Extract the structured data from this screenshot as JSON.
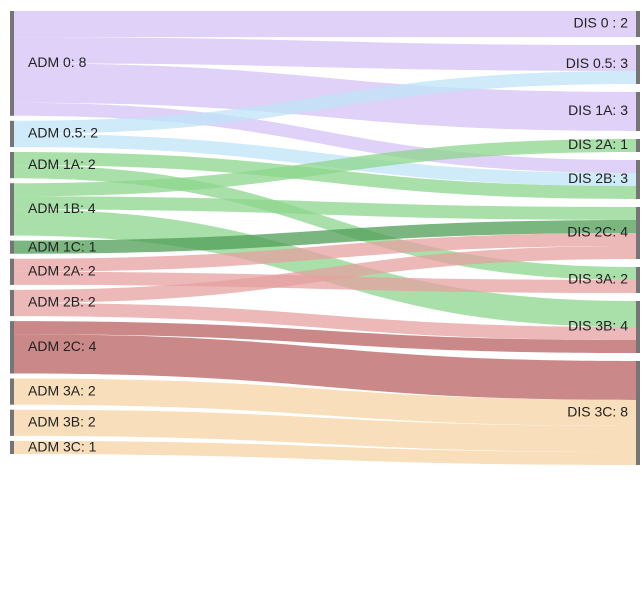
{
  "chart_data": {
    "type": "sankey",
    "title": "",
    "colors": {
      "0": "#d6c2f5",
      "0.5": "#bfe3f7",
      "1": "#8cd68c",
      "2": "#e6a0a0",
      "3": "#f5d3a3",
      "1-strong": "#4f9e57",
      "2-strong": "#b86060",
      "node": "#757575"
    },
    "source_nodes": [
      {
        "id": "ADM 0",
        "label": "ADM 0: 8",
        "value": 8,
        "group": "0"
      },
      {
        "id": "ADM 0.5",
        "label": "ADM 0.5: 2",
        "value": 2,
        "group": "0.5"
      },
      {
        "id": "ADM 1A",
        "label": "ADM 1A: 2",
        "value": 2,
        "group": "1"
      },
      {
        "id": "ADM 1B",
        "label": "ADM 1B: 4",
        "value": 4,
        "group": "1"
      },
      {
        "id": "ADM 1C",
        "label": "ADM 1C: 1",
        "value": 1,
        "group": "1"
      },
      {
        "id": "ADM 2A",
        "label": "ADM 2A: 2",
        "value": 2,
        "group": "2"
      },
      {
        "id": "ADM 2B",
        "label": "ADM 2B: 2",
        "value": 2,
        "group": "2"
      },
      {
        "id": "ADM 2C",
        "label": "ADM 2C: 4",
        "value": 4,
        "group": "2"
      },
      {
        "id": "ADM 3A",
        "label": "ADM 3A: 2",
        "value": 2,
        "group": "3"
      },
      {
        "id": "ADM 3B",
        "label": "ADM 3B: 2",
        "value": 2,
        "group": "3"
      },
      {
        "id": "ADM 3C",
        "label": "ADM 3C: 1",
        "value": 1,
        "group": "3"
      }
    ],
    "target_nodes": [
      {
        "id": "DIS 0",
        "label": "DIS 0 : 2",
        "value": 2
      },
      {
        "id": "DIS 0.5",
        "label": "DIS 0.5: 3",
        "value": 3
      },
      {
        "id": "DIS 1A",
        "label": "DIS 1A: 3",
        "value": 3
      },
      {
        "id": "DIS 2A",
        "label": "DIS 2A: 1",
        "value": 1
      },
      {
        "id": "DIS 2B",
        "label": "DIS 2B: 3",
        "value": 3
      },
      {
        "id": "DIS 2C",
        "label": "DIS 2C: 4",
        "value": 4
      },
      {
        "id": "DIS 3A",
        "label": "DIS 3A: 2",
        "value": 2
      },
      {
        "id": "DIS 3B",
        "label": "DIS 3B: 4",
        "value": 4
      },
      {
        "id": "DIS 3C",
        "label": "DIS 3C: 8",
        "value": 8
      }
    ],
    "links": [
      {
        "source": "ADM 0",
        "target": "DIS 0",
        "value": 2,
        "color": "0"
      },
      {
        "source": "ADM 0",
        "target": "DIS 0.5",
        "value": 2,
        "color": "0"
      },
      {
        "source": "ADM 0",
        "target": "DIS 1A",
        "value": 3,
        "color": "0"
      },
      {
        "source": "ADM 0",
        "target": "DIS 2B",
        "value": 1,
        "color": "0"
      },
      {
        "source": "ADM 0.5",
        "target": "DIS 0.5",
        "value": 1,
        "color": "0.5"
      },
      {
        "source": "ADM 0.5",
        "target": "DIS 2B",
        "value": 1,
        "color": "0.5"
      },
      {
        "source": "ADM 1A",
        "target": "DIS 2B",
        "value": 1,
        "color": "1"
      },
      {
        "source": "ADM 1A",
        "target": "DIS 3A",
        "value": 1,
        "color": "1"
      },
      {
        "source": "ADM 1B",
        "target": "DIS 2A",
        "value": 1,
        "color": "1"
      },
      {
        "source": "ADM 1B",
        "target": "DIS 2C",
        "value": 1,
        "color": "1"
      },
      {
        "source": "ADM 1B",
        "target": "DIS 3B",
        "value": 2,
        "color": "1"
      },
      {
        "source": "ADM 1C",
        "target": "DIS 2C",
        "value": 1,
        "color": "1-strong"
      },
      {
        "source": "ADM 2A",
        "target": "DIS 2C",
        "value": 1,
        "color": "2"
      },
      {
        "source": "ADM 2A",
        "target": "DIS 3A",
        "value": 1,
        "color": "2"
      },
      {
        "source": "ADM 2B",
        "target": "DIS 2C",
        "value": 1,
        "color": "2"
      },
      {
        "source": "ADM 2B",
        "target": "DIS 3B",
        "value": 1,
        "color": "2"
      },
      {
        "source": "ADM 2C",
        "target": "DIS 3B",
        "value": 1,
        "color": "2-strong"
      },
      {
        "source": "ADM 2C",
        "target": "DIS 3C",
        "value": 3,
        "color": "2-strong"
      },
      {
        "source": "ADM 3A",
        "target": "DIS 3C",
        "value": 2,
        "color": "3"
      },
      {
        "source": "ADM 3B",
        "target": "DIS 3C",
        "value": 2,
        "color": "3"
      },
      {
        "source": "ADM 3C",
        "target": "DIS 3C",
        "value": 1,
        "color": "3"
      }
    ]
  }
}
